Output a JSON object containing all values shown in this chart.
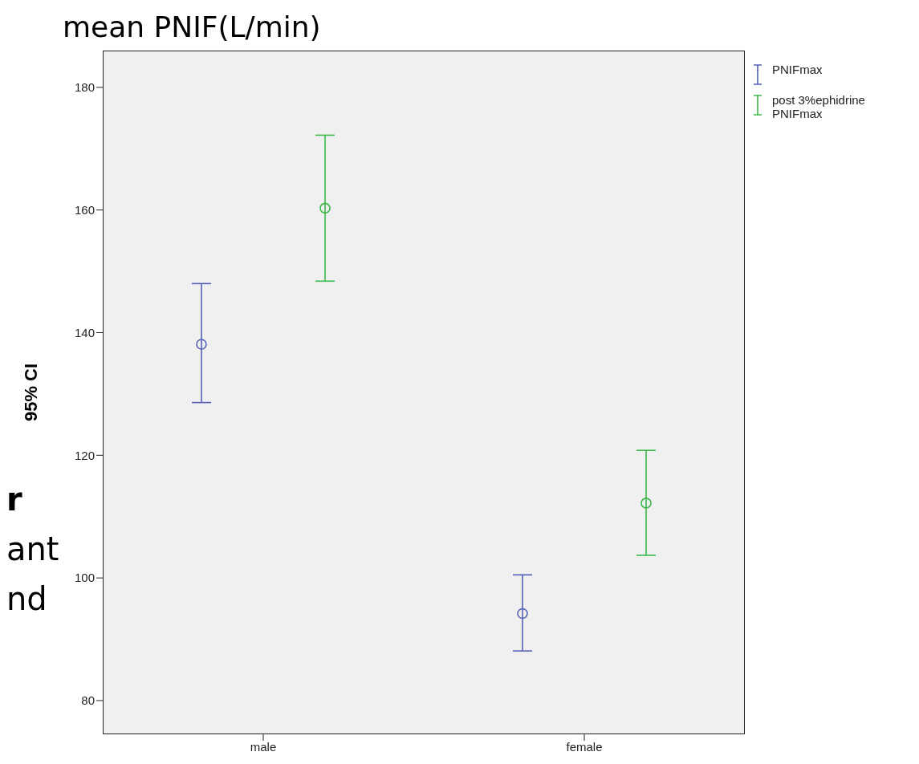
{
  "chart_data": {
    "type": "scatter",
    "title": "mean PNIF(L/min)",
    "ylabel": "95% CI",
    "categories": [
      "male",
      "female"
    ],
    "series": [
      {
        "name": "PNIFmax",
        "color": "#5560b8",
        "values": [
          138.1,
          94.2
        ],
        "errors": [
          [
            128.6,
            148
          ],
          [
            88.1,
            100.5
          ]
        ]
      },
      {
        "name": "post 3%ephidrine PNIFmax",
        "color": "#3cb84a",
        "values": [
          160.3,
          112.2
        ],
        "errors": [
          [
            148.4,
            172.2
          ],
          [
            103.7,
            120.8
          ]
        ]
      }
    ],
    "ylim": [
      74.5,
      186
    ],
    "yticks": [
      80,
      100,
      120,
      140,
      160,
      180
    ],
    "legend": "top right",
    "marker": "circle",
    "annotations": [
      "r",
      "ant",
      "nd"
    ]
  }
}
